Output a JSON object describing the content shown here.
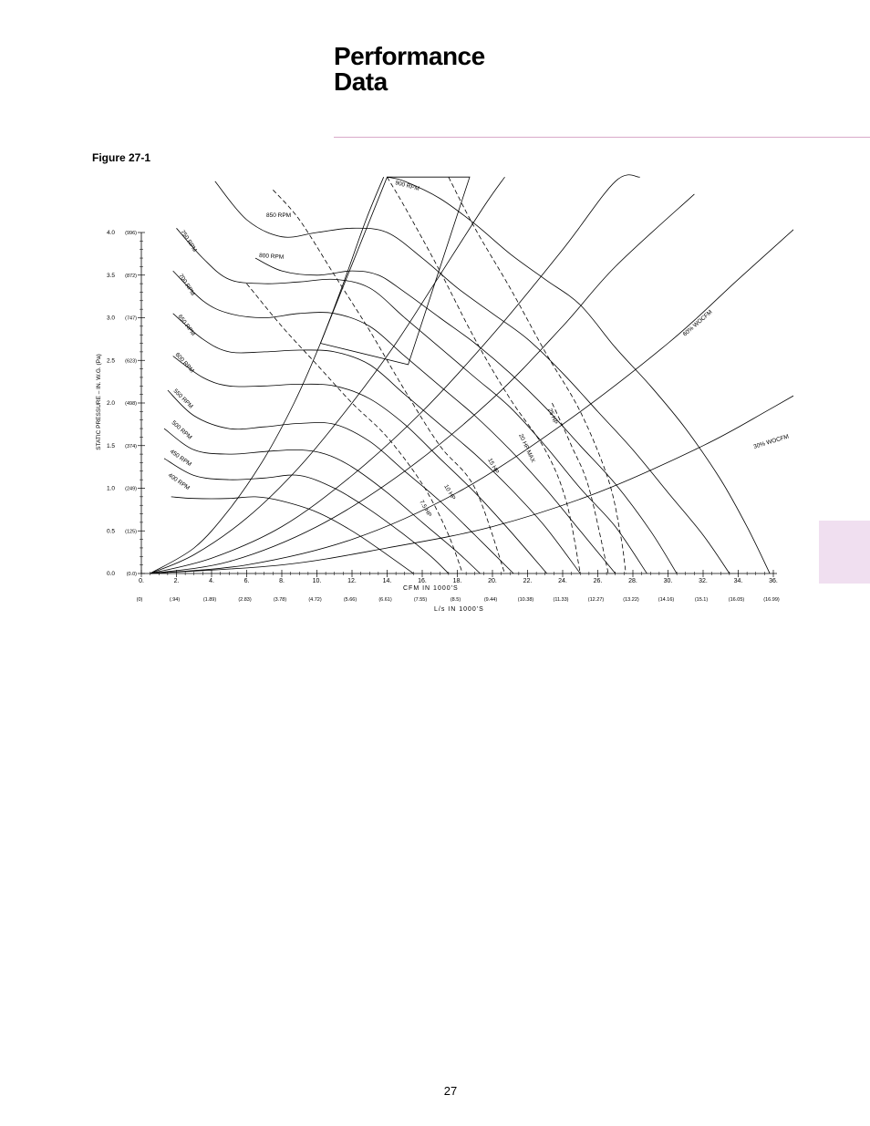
{
  "page": {
    "title_line1": "Performance",
    "title_line2": "Data",
    "figure_label": "Figure 27-1",
    "page_number": "27"
  },
  "chart_data": {
    "type": "line",
    "title": "",
    "xlabel": "CFM IN   1000'S",
    "xlabel_secondary": "L/s IN 1000'S",
    "ylabel": "STATIC PRESSURE – IN. W.G.  (Pa)",
    "xlim": [
      0,
      36
    ],
    "ylim": [
      0,
      4.0
    ],
    "x_ticks": [
      "0.",
      "2.",
      "4.",
      "6.",
      "8.",
      "10.",
      "12.",
      "14.",
      "16.",
      "18.",
      "20.",
      "22.",
      "24.",
      "26.",
      "28.",
      "30.",
      "32.",
      "34.",
      "36."
    ],
    "x_tick_values": [
      0,
      2,
      4,
      6,
      8,
      10,
      12,
      14,
      16,
      18,
      20,
      22,
      24,
      26,
      28,
      30,
      32,
      34,
      36
    ],
    "x_ticks_secondary": [
      "(0)",
      "(.94)",
      "(1.89)",
      "(2.83)",
      "(3.78)",
      "(4.72)",
      "(5.66)",
      "(6.61)",
      "(7.55)",
      "(8.5)",
      "(9.44)",
      "(10.38)",
      "(11.33)",
      "(12.27)",
      "(13.22)",
      "(14.16)",
      "(15.1)",
      "(16.05)",
      "(16.99)"
    ],
    "y_ticks": [
      "0.0",
      "0.5",
      "1.0",
      "1.5",
      "2.0",
      "2.5",
      "3.0",
      "3.5",
      "4.0"
    ],
    "y_tick_values": [
      0,
      0.5,
      1.0,
      1.5,
      2.0,
      2.5,
      3.0,
      3.5,
      4.0
    ],
    "y_ticks_secondary": [
      "(0.0)",
      "(125)",
      "(249)",
      "(374)",
      "(498)",
      "(623)",
      "(747)",
      "(872)",
      "(996)"
    ],
    "grid": false,
    "rpm_curves": [
      {
        "name": "400 RPM",
        "points": [
          [
            1.7,
            0.9
          ],
          [
            3,
            0.88
          ],
          [
            5,
            0.88
          ],
          [
            6.5,
            0.9
          ],
          [
            8,
            0.85
          ],
          [
            10,
            0.72
          ],
          [
            12,
            0.5
          ],
          [
            14,
            0.22
          ],
          [
            15.5,
            0
          ]
        ]
      },
      {
        "name": "450 RPM",
        "points": [
          [
            1.3,
            1.35
          ],
          [
            3,
            1.15
          ],
          [
            5,
            1.1
          ],
          [
            7,
            1.12
          ],
          [
            9,
            1.15
          ],
          [
            11,
            1.0
          ],
          [
            13,
            0.75
          ],
          [
            15,
            0.45
          ],
          [
            16.5,
            0.2
          ],
          [
            17.5,
            0
          ]
        ]
      },
      {
        "name": "500 RPM",
        "points": [
          [
            1.3,
            1.7
          ],
          [
            3,
            1.45
          ],
          [
            5,
            1.4
          ],
          [
            7,
            1.43
          ],
          [
            9,
            1.45
          ],
          [
            10.5,
            1.4
          ],
          [
            12,
            1.25
          ],
          [
            14,
            0.95
          ],
          [
            16,
            0.6
          ],
          [
            18,
            0.25
          ],
          [
            19.3,
            0
          ]
        ]
      },
      {
        "name": "550 RPM",
        "points": [
          [
            1.5,
            2.15
          ],
          [
            3,
            1.85
          ],
          [
            5,
            1.7
          ],
          [
            7,
            1.72
          ],
          [
            9,
            1.76
          ],
          [
            11,
            1.75
          ],
          [
            13,
            1.55
          ],
          [
            15,
            1.2
          ],
          [
            17,
            0.85
          ],
          [
            19,
            0.45
          ],
          [
            21.2,
            0
          ]
        ]
      },
      {
        "name": "600 RPM",
        "points": [
          [
            1.8,
            2.55
          ],
          [
            3.5,
            2.3
          ],
          [
            5,
            2.2
          ],
          [
            7,
            2.2
          ],
          [
            9,
            2.22
          ],
          [
            11,
            2.2
          ],
          [
            13,
            2.05
          ],
          [
            15,
            1.75
          ],
          [
            17,
            1.35
          ],
          [
            19,
            0.95
          ],
          [
            21,
            0.5
          ],
          [
            23.1,
            0
          ]
        ]
      },
      {
        "name": "650 RPM",
        "points": [
          [
            1.8,
            3.05
          ],
          [
            3.5,
            2.75
          ],
          [
            5,
            2.6
          ],
          [
            7,
            2.6
          ],
          [
            9,
            2.62
          ],
          [
            11,
            2.6
          ],
          [
            13,
            2.45
          ],
          [
            15,
            2.1
          ],
          [
            17,
            1.75
          ],
          [
            19,
            1.4
          ],
          [
            21,
            1.0
          ],
          [
            23,
            0.55
          ],
          [
            25,
            0
          ]
        ]
      },
      {
        "name": "700 RPM",
        "points": [
          [
            1.8,
            3.55
          ],
          [
            3.5,
            3.2
          ],
          [
            5,
            3.05
          ],
          [
            7,
            3.0
          ],
          [
            9,
            3.05
          ],
          [
            11,
            3.05
          ],
          [
            13,
            2.9
          ],
          [
            15,
            2.55
          ],
          [
            17,
            2.2
          ],
          [
            19,
            1.85
          ],
          [
            21,
            1.45
          ],
          [
            23,
            1.0
          ],
          [
            25,
            0.5
          ],
          [
            27,
            0
          ]
        ]
      },
      {
        "name": "750 RPM",
        "points": [
          [
            2.0,
            4.05
          ],
          [
            3.5,
            3.7
          ],
          [
            5,
            3.45
          ],
          [
            7,
            3.4
          ],
          [
            9,
            3.42
          ],
          [
            11,
            3.45
          ],
          [
            13,
            3.35
          ],
          [
            15,
            3.0
          ],
          [
            17,
            2.65
          ],
          [
            19,
            2.3
          ],
          [
            21,
            1.95
          ],
          [
            23,
            1.5
          ],
          [
            25,
            1.0
          ],
          [
            27,
            0.55
          ],
          [
            28.8,
            0
          ]
        ]
      },
      {
        "name": "800 RPM",
        "points": [
          [
            6.5,
            3.7
          ],
          [
            8,
            3.55
          ],
          [
            10,
            3.5
          ],
          [
            12,
            3.55
          ],
          [
            13.5,
            3.5
          ],
          [
            15,
            3.3
          ],
          [
            17,
            3.0
          ],
          [
            19,
            2.7
          ],
          [
            21,
            2.35
          ],
          [
            23,
            1.95
          ],
          [
            25,
            1.5
          ],
          [
            27,
            1.05
          ],
          [
            29,
            0.5
          ],
          [
            30.5,
            0
          ]
        ]
      },
      {
        "name": "850 RPM",
        "points": [
          [
            4.2,
            4.6
          ],
          [
            6,
            4.15
          ],
          [
            8,
            3.95
          ],
          [
            10,
            4.0
          ],
          [
            12,
            4.05
          ],
          [
            14,
            4.0
          ],
          [
            16,
            3.7
          ],
          [
            18,
            3.35
          ],
          [
            20,
            3.05
          ],
          [
            22,
            2.75
          ],
          [
            24,
            2.35
          ],
          [
            26,
            1.9
          ],
          [
            28,
            1.45
          ],
          [
            30,
            0.95
          ],
          [
            32,
            0.45
          ],
          [
            33.5,
            0
          ]
        ]
      },
      {
        "name": "900 RPM",
        "points": [
          [
            14,
            4.65
          ],
          [
            15,
            4.6
          ],
          [
            17,
            4.4
          ],
          [
            19,
            4.1
          ],
          [
            21,
            3.75
          ],
          [
            23,
            3.45
          ],
          [
            25,
            3.15
          ],
          [
            27,
            2.65
          ],
          [
            29,
            2.2
          ],
          [
            31,
            1.7
          ],
          [
            33,
            1.1
          ],
          [
            34.5,
            0.55
          ],
          [
            35.8,
            0
          ]
        ]
      }
    ],
    "system_curves": [
      {
        "points": [
          [
            0.5,
            0
          ],
          [
            3,
            0.3
          ],
          [
            5,
            0.75
          ],
          [
            7,
            1.35
          ],
          [
            8.7,
            2.0
          ],
          [
            10.2,
            2.7
          ],
          [
            11.5,
            3.4
          ],
          [
            12.8,
            4.15
          ],
          [
            13.8,
            4.65
          ]
        ]
      },
      {
        "points": [
          [
            0.5,
            0
          ],
          [
            3,
            0.22
          ],
          [
            6,
            0.65
          ],
          [
            9,
            1.25
          ],
          [
            12,
            2.0
          ],
          [
            14.5,
            2.7
          ],
          [
            17,
            3.5
          ],
          [
            19.5,
            4.3
          ],
          [
            20.7,
            4.65
          ]
        ]
      },
      {
        "points": [
          [
            0.5,
            0
          ],
          [
            4,
            0.18
          ],
          [
            8,
            0.55
          ],
          [
            12,
            1.15
          ],
          [
            16,
            1.9
          ],
          [
            20,
            2.8
          ],
          [
            24,
            3.8
          ],
          [
            27,
            4.6
          ],
          [
            28.4,
            4.65
          ]
        ]
      },
      {
        "points": [
          [
            0.5,
            0
          ],
          [
            5,
            0.14
          ],
          [
            10,
            0.55
          ],
          [
            15,
            1.2
          ],
          [
            20,
            2.05
          ],
          [
            24,
            2.9
          ],
          [
            27,
            3.6
          ],
          [
            31.5,
            4.45
          ]
        ]
      },
      {
        "name": "60% WOCFM",
        "points": [
          [
            0.5,
            0
          ],
          [
            6,
            0.1
          ],
          [
            12,
            0.4
          ],
          [
            18,
            0.95
          ],
          [
            24,
            1.75
          ],
          [
            30,
            2.7
          ],
          [
            34,
            3.45
          ],
          [
            37.5,
            4.1
          ]
        ]
      },
      {
        "name": "30% WOCFM",
        "points": [
          [
            0.5,
            0
          ],
          [
            8,
            0.1
          ],
          [
            14,
            0.3
          ],
          [
            20,
            0.55
          ],
          [
            26,
            0.95
          ],
          [
            32,
            1.5
          ],
          [
            36,
            1.95
          ],
          [
            41.5,
            2.6
          ]
        ]
      }
    ],
    "hp_lines": [
      {
        "name": "7.5 HP",
        "points": [
          [
            6,
            3.4
          ],
          [
            8,
            2.9
          ],
          [
            10,
            2.45
          ],
          [
            12,
            2.0
          ],
          [
            14,
            1.6
          ],
          [
            16,
            1.05
          ],
          [
            17.4,
            0.5
          ],
          [
            18.3,
            0
          ]
        ]
      },
      {
        "name": "10 HP",
        "points": [
          [
            7.5,
            4.5
          ],
          [
            9,
            4.15
          ],
          [
            11,
            3.5
          ],
          [
            13,
            2.85
          ],
          [
            15,
            2.15
          ],
          [
            17,
            1.5
          ],
          [
            19,
            1.0
          ],
          [
            20.7,
            0
          ]
        ]
      },
      {
        "name": "15 HP",
        "points": [
          [
            14,
            4.65
          ],
          [
            15,
            4.3
          ],
          [
            17,
            3.55
          ],
          [
            19,
            2.75
          ],
          [
            21,
            2.05
          ],
          [
            23,
            1.45
          ],
          [
            24.2,
            0.85
          ],
          [
            25,
            0
          ]
        ]
      },
      {
        "name": "20 HP MAX",
        "points": [
          [
            17.5,
            4.65
          ],
          [
            19,
            4.05
          ],
          [
            21,
            3.35
          ],
          [
            23,
            2.6
          ],
          [
            25,
            1.9
          ],
          [
            26.6,
            1.1
          ],
          [
            27.3,
            0.45
          ],
          [
            27.6,
            0
          ]
        ]
      },
      {
        "name": "25 HP",
        "points": [
          [
            23.4,
            2.0
          ],
          [
            24.5,
            1.5
          ],
          [
            25.5,
            1.0
          ],
          [
            26.6,
            0
          ]
        ]
      }
    ],
    "operating_envelope": {
      "points": [
        [
          10.2,
          2.7
        ],
        [
          14.0,
          4.65
        ],
        [
          18.7,
          4.65
        ],
        [
          15.2,
          2.45
        ]
      ]
    },
    "annotations": [
      "850 RPM",
      "900 RPM",
      "800 RPM",
      "60% WOCFM",
      "30% WOCFM"
    ]
  }
}
